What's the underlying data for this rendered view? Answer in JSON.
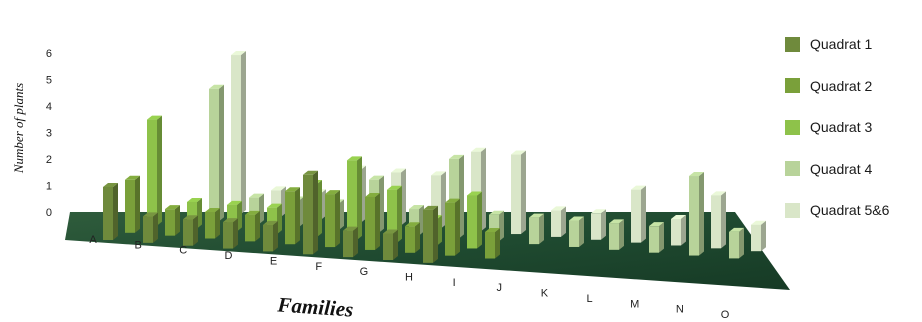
{
  "chart_data": {
    "type": "bar",
    "subtype": "3d-clustered-column",
    "xlabel": "Families",
    "ylabel": "Number of plants",
    "ylim": [
      0,
      6
    ],
    "yticks": [
      "0",
      "1",
      "2",
      "3",
      "4",
      "5",
      "6"
    ],
    "categories": [
      "A",
      "B",
      "C",
      "D",
      "E",
      "F",
      "G",
      "H",
      "I",
      "J",
      "K",
      "L",
      "M",
      "N",
      "O"
    ],
    "legend_position": "right",
    "series": [
      {
        "name": "Quadrat 1",
        "color": "#6f8a3c",
        "values": [
          2,
          1,
          1,
          1,
          1,
          3,
          1,
          1,
          2,
          0,
          0,
          0,
          0,
          0,
          0
        ]
      },
      {
        "name": "Quadrat 2",
        "color": "#7aa03a",
        "values": [
          2,
          1,
          1,
          1,
          2,
          2,
          2,
          1,
          2,
          1,
          0,
          0,
          0,
          0,
          0
        ]
      },
      {
        "name": "Quadrat 3",
        "color": "#8ec24a",
        "values": [
          4,
          1,
          1,
          1,
          2,
          3,
          2,
          1,
          2,
          0,
          0,
          0,
          0,
          0,
          0
        ]
      },
      {
        "name": "Quadrat 4",
        "color": "#b8d39a",
        "values": [
          0,
          5,
          1,
          1,
          1,
          2,
          1,
          3,
          1,
          1,
          1,
          1,
          1,
          3,
          1
        ]
      },
      {
        "name": "Quadrat 5&6",
        "color": "#d9e6c8",
        "values": [
          0,
          6,
          1,
          1,
          2,
          2,
          2,
          3,
          3,
          1,
          1,
          2,
          1,
          2,
          1
        ]
      }
    ]
  }
}
